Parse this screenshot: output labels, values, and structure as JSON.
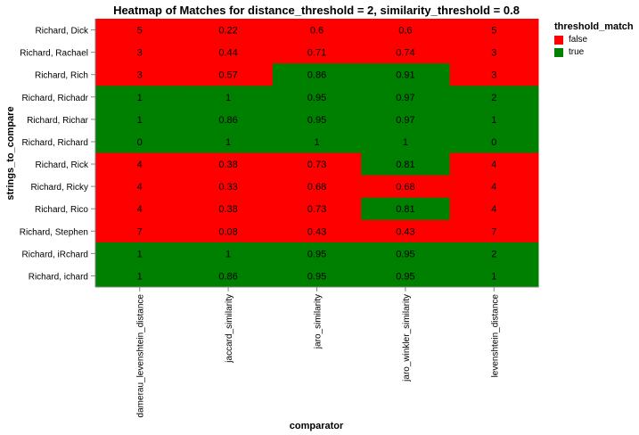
{
  "chart_data": {
    "type": "heatmap",
    "title": "Heatmap of Matches for distance_threshold = 2, similarity_threshold = 0.8",
    "xlabel": "comparator",
    "ylabel": "strings_to_compare",
    "x_categories": [
      "damerau_levenshtein_distance",
      "jaccard_similarity",
      "jaro_similarity",
      "jaro_winkler_similarity",
      "levenshtein_distance"
    ],
    "y_categories": [
      "Richard, Dick",
      "Richard, Rachael",
      "Richard, Rich",
      "Richard, Richadr",
      "Richard, Richar",
      "Richard, Richard",
      "Richard, Rick",
      "Richard, Ricky",
      "Richard, Rico",
      "Richard, Stephen",
      "Richard, iRchard",
      "Richard, ichard"
    ],
    "values": [
      [
        "5",
        "0.22",
        "0.6",
        "0.6",
        "5"
      ],
      [
        "3",
        "0.44",
        "0.71",
        "0.74",
        "3"
      ],
      [
        "3",
        "0.57",
        "0.86",
        "0.91",
        "3"
      ],
      [
        "1",
        "1",
        "0.95",
        "0.97",
        "2"
      ],
      [
        "1",
        "0.86",
        "0.95",
        "0.97",
        "1"
      ],
      [
        "0",
        "1",
        "1",
        "1",
        "0"
      ],
      [
        "4",
        "0.38",
        "0.73",
        "0.81",
        "4"
      ],
      [
        "4",
        "0.33",
        "0.68",
        "0.68",
        "4"
      ],
      [
        "4",
        "0.38",
        "0.73",
        "0.81",
        "4"
      ],
      [
        "7",
        "0.08",
        "0.43",
        "0.43",
        "7"
      ],
      [
        "1",
        "1",
        "0.95",
        "0.95",
        "2"
      ],
      [
        "1",
        "0.86",
        "0.95",
        "0.95",
        "1"
      ]
    ],
    "match": [
      [
        false,
        false,
        false,
        false,
        false
      ],
      [
        false,
        false,
        false,
        false,
        false
      ],
      [
        false,
        false,
        true,
        true,
        false
      ],
      [
        true,
        true,
        true,
        true,
        true
      ],
      [
        true,
        true,
        true,
        true,
        true
      ],
      [
        true,
        true,
        true,
        true,
        true
      ],
      [
        false,
        false,
        false,
        true,
        false
      ],
      [
        false,
        false,
        false,
        false,
        false
      ],
      [
        false,
        false,
        false,
        true,
        false
      ],
      [
        false,
        false,
        false,
        false,
        false
      ],
      [
        true,
        true,
        true,
        true,
        true
      ],
      [
        true,
        true,
        true,
        true,
        true
      ]
    ],
    "legend": {
      "title": "threshold_match",
      "position": "top-right",
      "items": [
        {
          "label": "false",
          "color": "#ff0000"
        },
        {
          "label": "true",
          "color": "#008000"
        }
      ]
    },
    "colors": {
      "false": "#ff0000",
      "true": "#008000"
    }
  }
}
